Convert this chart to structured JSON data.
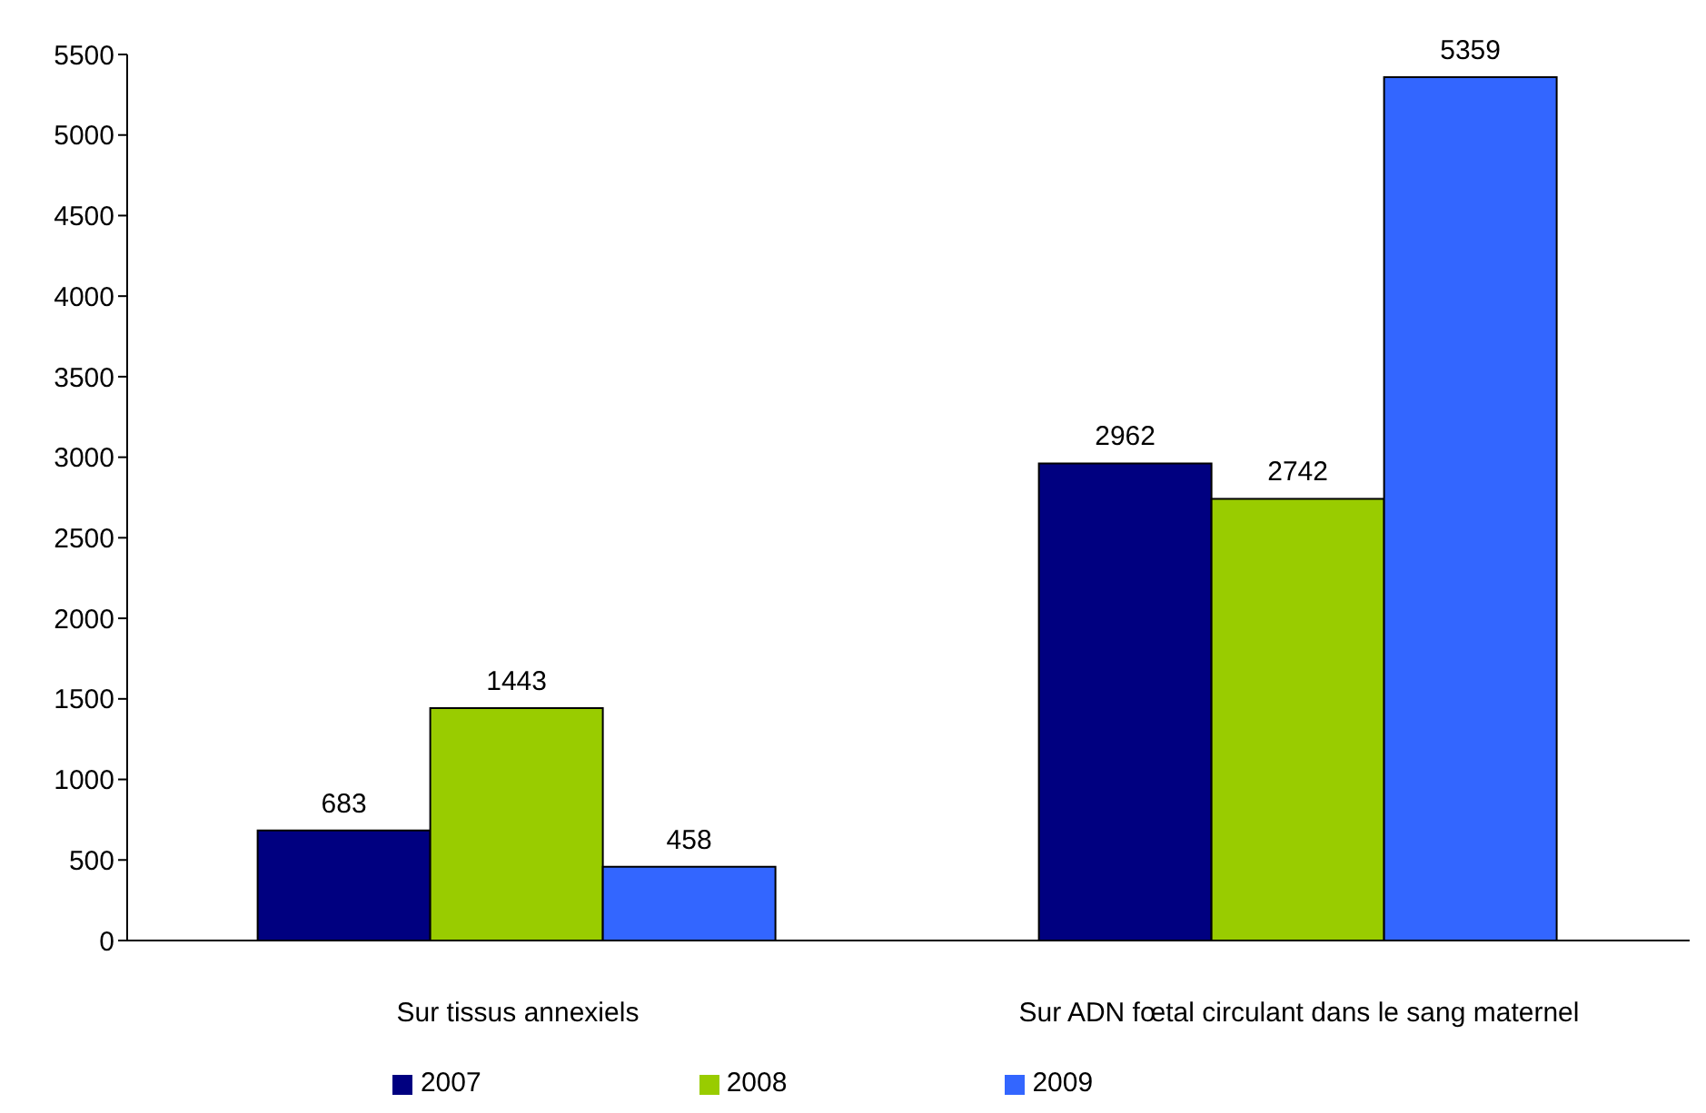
{
  "chart_data": {
    "type": "bar",
    "categories": [
      "Sur tissus annexiels",
      "Sur ADN fœtal circulant dans le sang maternel"
    ],
    "series": [
      {
        "name": "2007",
        "color": "#000080",
        "values": [
          683,
          2962
        ]
      },
      {
        "name": "2008",
        "color": "#99cc00",
        "values": [
          1443,
          2742
        ]
      },
      {
        "name": "2009",
        "color": "#3366ff",
        "values": [
          458,
          5359
        ]
      }
    ],
    "ylim": [
      0,
      5500
    ],
    "yticks": [
      0,
      500,
      1000,
      1500,
      2000,
      2500,
      3000,
      3500,
      4000,
      4500,
      5000,
      5500
    ],
    "grid": false,
    "legend": "bottom",
    "data_labels": true
  }
}
